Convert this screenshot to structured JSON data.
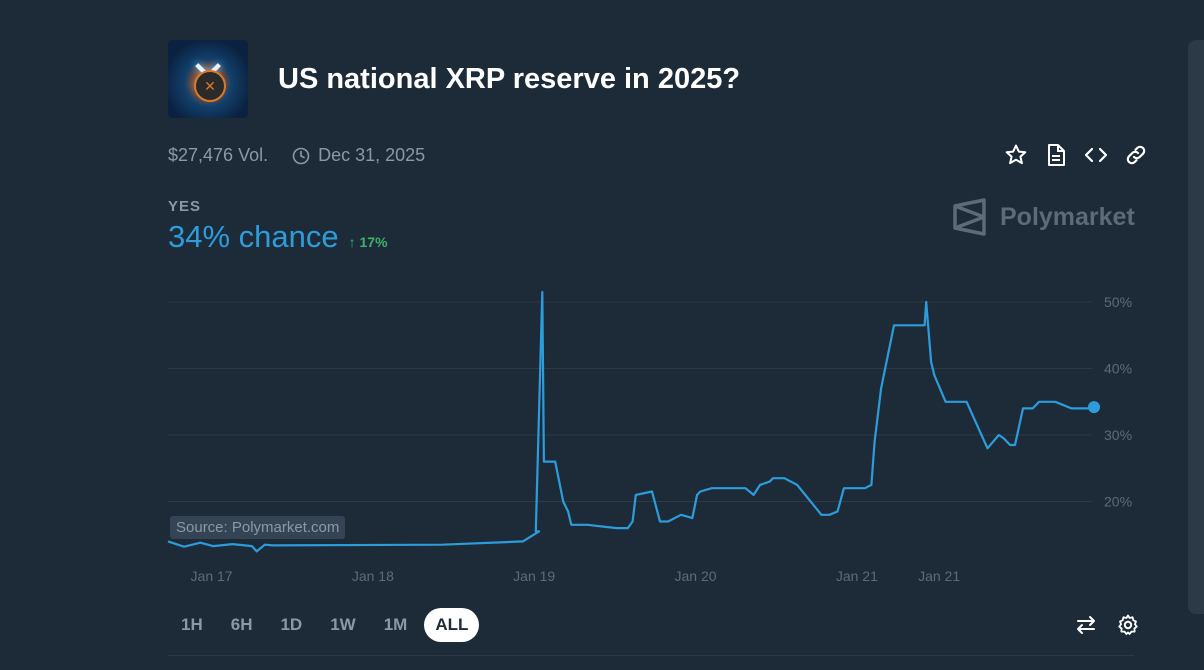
{
  "market": {
    "title": "US national XRP reserve in 2025?",
    "volume": "$27,476 Vol.",
    "end_date": "Dec 31, 2025",
    "image_icon": "xrp-logo"
  },
  "actions": [
    {
      "name": "favorite",
      "icon": "star-icon"
    },
    {
      "name": "details",
      "icon": "document-icon"
    },
    {
      "name": "embed",
      "icon": "code-icon"
    },
    {
      "name": "copy-link",
      "icon": "link-icon"
    }
  ],
  "outcome": {
    "label": "YES",
    "chance": "34% chance",
    "delta": "17%",
    "up_color": "#3db36b"
  },
  "brand": {
    "name": "Polymarket"
  },
  "source": "Source: Polymarket.com",
  "timeframes": [
    "1H",
    "6H",
    "1D",
    "1W",
    "1M",
    "ALL"
  ],
  "active_timeframe": "ALL",
  "colors": {
    "accent": "#2d9cdb",
    "background": "#1d2b39",
    "gridline": "#2c3a48",
    "muted": "#8b98a6"
  },
  "chart_data": {
    "type": "line",
    "x_tick_labels": [
      "Jan 17",
      "Jan 18",
      "Jan 19",
      "Jan 20",
      "Jan 21",
      "Jan 21"
    ],
    "y_tick_labels": [
      "50%",
      "40%",
      "30%",
      "20%"
    ],
    "ylim": [
      12,
      50
    ],
    "y_ticks": [
      50,
      40,
      30,
      20
    ],
    "x_ticks": [
      0.27,
      1.27,
      2.27,
      3.27,
      4.27,
      4.78
    ],
    "grid": true,
    "line_color": "#2d9cdb",
    "series": [
      {
        "x": [
          0,
          0.1,
          0.2,
          0.28,
          0.4,
          0.52,
          0.55,
          0.6,
          0.65,
          1.7,
          2.2,
          2.3,
          2.28,
          2.32,
          2.33,
          2.4,
          2.45,
          2.48,
          2.5,
          2.55,
          2.6,
          2.78,
          2.8,
          2.85,
          2.88,
          2.9,
          3.0,
          3.05,
          3.1,
          3.18,
          3.25,
          3.28,
          3.3,
          3.37,
          3.42,
          3.46,
          3.58,
          3.63,
          3.67,
          3.73,
          3.75,
          3.78,
          3.82,
          3.9,
          4.05,
          4.1,
          4.15,
          4.19,
          4.32,
          4.36,
          4.38,
          4.42,
          4.5,
          4.6,
          4.69,
          4.7,
          4.73,
          4.75,
          4.82,
          4.86,
          4.9,
          4.95,
          5.08,
          5.15
        ],
        "y": [
          14,
          13.2,
          13.8,
          13.3,
          13.6,
          13.3,
          12.5,
          13.5,
          13.4,
          13.5,
          14,
          15.5,
          15.5,
          51.5,
          26,
          26,
          20,
          18.5,
          16.5,
          16.5,
          16.5,
          16,
          16,
          16,
          17,
          21,
          21.5,
          17,
          17,
          18,
          17.5,
          21,
          21.5,
          22,
          22,
          22,
          22,
          21,
          22.5,
          23,
          23.5,
          23.5,
          23.5,
          22.5,
          18,
          18,
          18.5,
          22,
          22,
          22.5,
          29,
          37,
          46.5,
          46.5,
          46.5,
          50,
          41,
          39,
          35,
          35,
          35,
          35,
          28,
          30
        ],
        "name": ""
      }
    ],
    "x_continued": [
      5.18,
      5.22,
      5.25,
      5.3,
      5.36,
      5.4,
      5.5,
      5.6,
      5.7,
      5.74
    ],
    "y_continued": [
      29.5,
      28.5,
      28.5,
      34,
      34,
      35,
      35,
      34,
      34,
      34.2
    ]
  }
}
